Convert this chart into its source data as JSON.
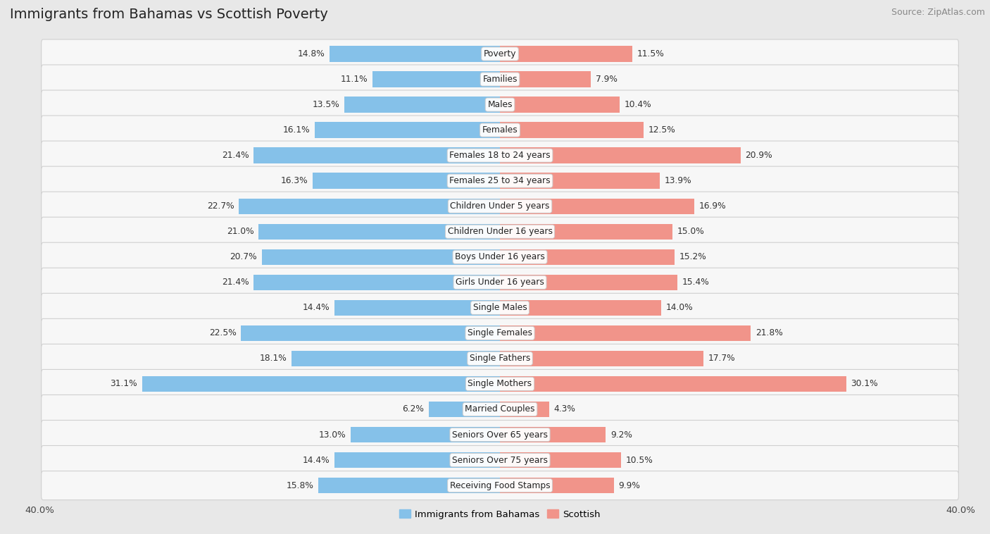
{
  "title": "Immigrants from Bahamas vs Scottish Poverty",
  "source": "Source: ZipAtlas.com",
  "categories": [
    "Poverty",
    "Families",
    "Males",
    "Females",
    "Females 18 to 24 years",
    "Females 25 to 34 years",
    "Children Under 5 years",
    "Children Under 16 years",
    "Boys Under 16 years",
    "Girls Under 16 years",
    "Single Males",
    "Single Females",
    "Single Fathers",
    "Single Mothers",
    "Married Couples",
    "Seniors Over 65 years",
    "Seniors Over 75 years",
    "Receiving Food Stamps"
  ],
  "bahamas_values": [
    14.8,
    11.1,
    13.5,
    16.1,
    21.4,
    16.3,
    22.7,
    21.0,
    20.7,
    21.4,
    14.4,
    22.5,
    18.1,
    31.1,
    6.2,
    13.0,
    14.4,
    15.8
  ],
  "scottish_values": [
    11.5,
    7.9,
    10.4,
    12.5,
    20.9,
    13.9,
    16.9,
    15.0,
    15.2,
    15.4,
    14.0,
    21.8,
    17.7,
    30.1,
    4.3,
    9.2,
    10.5,
    9.9
  ],
  "bahamas_color": "#85C1E9",
  "scottish_color": "#F1948A",
  "page_bg": "#e8e8e8",
  "row_bg": "#f7f7f7",
  "row_border": "#d0d0d0",
  "axis_limit": 40.0,
  "bar_height": 0.62,
  "label_fontsize": 8.8,
  "title_fontsize": 14,
  "source_fontsize": 9,
  "legend_labels": [
    "Immigrants from Bahamas",
    "Scottish"
  ]
}
